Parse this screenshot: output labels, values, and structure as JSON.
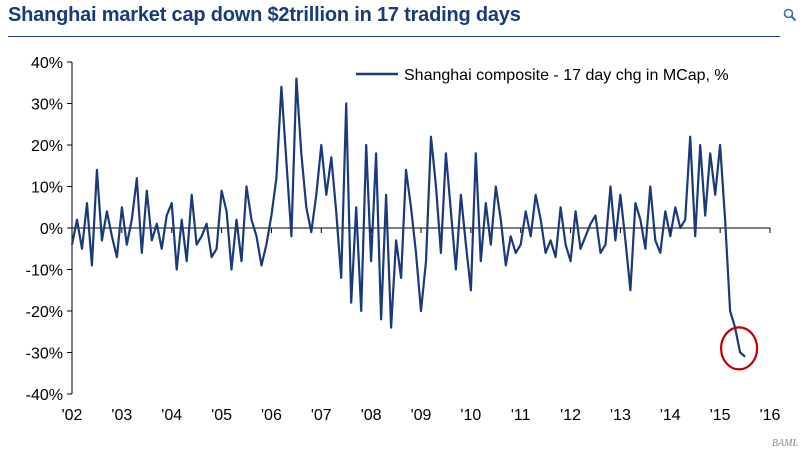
{
  "title": "Shanghai market cap down $2trillion in 17 trading days",
  "source": "BAML",
  "colors": {
    "title": "#1a3a7a",
    "series": "#1a3a7a",
    "highlight": "#c00000"
  },
  "icons": {
    "zoom": "magnifier-icon"
  },
  "chart_data": {
    "type": "line",
    "title": "Shanghai market cap down $2trillion in 17 trading days",
    "xlabel": "",
    "ylabel": "",
    "xlim": [
      2002,
      2016
    ],
    "ylim": [
      -40,
      40
    ],
    "x_ticks": [
      {
        "value": 2002,
        "label": "'02"
      },
      {
        "value": 2003,
        "label": "'03"
      },
      {
        "value": 2004,
        "label": "'04"
      },
      {
        "value": 2005,
        "label": "'05"
      },
      {
        "value": 2006,
        "label": "'06"
      },
      {
        "value": 2007,
        "label": "'07"
      },
      {
        "value": 2008,
        "label": "'08"
      },
      {
        "value": 2009,
        "label": "'09"
      },
      {
        "value": 2010,
        "label": "'10"
      },
      {
        "value": 2011,
        "label": "'11"
      },
      {
        "value": 2012,
        "label": "'12"
      },
      {
        "value": 2013,
        "label": "'13"
      },
      {
        "value": 2014,
        "label": "'14"
      },
      {
        "value": 2015,
        "label": "'15"
      },
      {
        "value": 2016,
        "label": "'16"
      }
    ],
    "y_ticks": [
      {
        "value": 40,
        "label": "40%"
      },
      {
        "value": 30,
        "label": "30%"
      },
      {
        "value": 20,
        "label": "20%"
      },
      {
        "value": 10,
        "label": "10%"
      },
      {
        "value": 0,
        "label": "0%"
      },
      {
        "value": -10,
        "label": "-10%"
      },
      {
        "value": -20,
        "label": "-20%"
      },
      {
        "value": -30,
        "label": "-30%"
      },
      {
        "value": -40,
        "label": "-40%"
      }
    ],
    "grid": false,
    "legend": {
      "position": "top-right",
      "entries": [
        "Shanghai composite - 17 day chg in MCap, %"
      ]
    },
    "series": [
      {
        "name": "Shanghai composite - 17 day chg in MCap, %",
        "color": "#1a3a7a",
        "x": [
          2002.0,
          2002.1,
          2002.2,
          2002.3,
          2002.4,
          2002.5,
          2002.6,
          2002.7,
          2002.8,
          2002.9,
          2003.0,
          2003.1,
          2003.2,
          2003.3,
          2003.4,
          2003.5,
          2003.6,
          2003.7,
          2003.8,
          2003.9,
          2004.0,
          2004.1,
          2004.2,
          2004.3,
          2004.4,
          2004.5,
          2004.6,
          2004.7,
          2004.8,
          2004.9,
          2005.0,
          2005.1,
          2005.2,
          2005.3,
          2005.4,
          2005.5,
          2005.6,
          2005.7,
          2005.8,
          2005.9,
          2006.0,
          2006.1,
          2006.2,
          2006.3,
          2006.4,
          2006.5,
          2006.6,
          2006.7,
          2006.8,
          2006.9,
          2007.0,
          2007.1,
          2007.2,
          2007.3,
          2007.4,
          2007.5,
          2007.6,
          2007.7,
          2007.8,
          2007.9,
          2008.0,
          2008.1,
          2008.2,
          2008.3,
          2008.4,
          2008.5,
          2008.6,
          2008.7,
          2008.8,
          2008.9,
          2009.0,
          2009.1,
          2009.2,
          2009.3,
          2009.4,
          2009.5,
          2009.6,
          2009.7,
          2009.8,
          2009.9,
          2010.0,
          2010.1,
          2010.2,
          2010.3,
          2010.4,
          2010.5,
          2010.6,
          2010.7,
          2010.8,
          2010.9,
          2011.0,
          2011.1,
          2011.2,
          2011.3,
          2011.4,
          2011.5,
          2011.6,
          2011.7,
          2011.8,
          2011.9,
          2012.0,
          2012.1,
          2012.2,
          2012.3,
          2012.4,
          2012.5,
          2012.6,
          2012.7,
          2012.8,
          2012.9,
          2013.0,
          2013.1,
          2013.2,
          2013.3,
          2013.4,
          2013.5,
          2013.6,
          2013.7,
          2013.8,
          2013.9,
          2014.0,
          2014.1,
          2014.2,
          2014.3,
          2014.4,
          2014.5,
          2014.6,
          2014.7,
          2014.8,
          2014.9,
          2015.0,
          2015.1,
          2015.2,
          2015.3,
          2015.4,
          2015.5
        ],
        "values": [
          -4,
          2,
          -5,
          6,
          -9,
          14,
          -3,
          4,
          -2,
          -7,
          5,
          -4,
          2,
          12,
          -6,
          9,
          -3,
          1,
          -5,
          3,
          6,
          -10,
          2,
          -8,
          8,
          -4,
          -2,
          1,
          -7,
          -5,
          9,
          4,
          -10,
          2,
          -8,
          10,
          2,
          -2,
          -9,
          -4,
          3,
          12,
          34,
          16,
          -2,
          36,
          18,
          5,
          -1,
          8,
          20,
          8,
          17,
          4,
          -12,
          30,
          -18,
          5,
          -20,
          20,
          -8,
          18,
          -22,
          8,
          -24,
          -3,
          -12,
          14,
          5,
          -6,
          -20,
          -8,
          22,
          10,
          -6,
          18,
          4,
          -10,
          8,
          -4,
          -15,
          18,
          -8,
          6,
          -4,
          10,
          2,
          -9,
          -2,
          -6,
          -4,
          4,
          -2,
          8,
          2,
          -6,
          -3,
          -7,
          5,
          -4,
          -8,
          4,
          -5,
          -2,
          1,
          3,
          -6,
          -4,
          10,
          -3,
          8,
          -3,
          -15,
          6,
          2,
          -5,
          10,
          -3,
          -6,
          4,
          -2,
          5,
          0,
          2,
          22,
          -2,
          20,
          3,
          18,
          8,
          20,
          2,
          -20,
          -24,
          -30,
          -31
        ]
      }
    ],
    "highlight": {
      "shape": "circle",
      "x": 2015.38,
      "y": -29
    }
  }
}
